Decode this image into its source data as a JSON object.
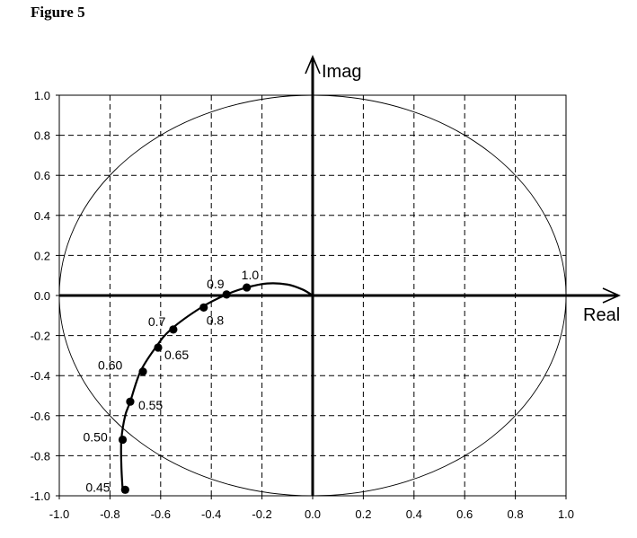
{
  "figure_title": "Figure 5",
  "chart_data": {
    "type": "scatter",
    "xlabel": "Real",
    "ylabel": "Imag",
    "xlim": [
      -1.0,
      1.0
    ],
    "ylim": [
      -1.0,
      1.0
    ],
    "x_ticks": [
      "-1.0",
      "-0.8",
      "-0.6",
      "-0.4",
      "-0.2",
      "0.0",
      "0.2",
      "0.4",
      "0.6",
      "0.8",
      "1.0"
    ],
    "y_ticks": [
      "1.0",
      "0.8",
      "0.6",
      "0.4",
      "0.2",
      "0.0",
      "-0.2",
      "-0.4",
      "-0.6",
      "-0.8",
      "-1.0"
    ],
    "grid": true,
    "unit_circle": {
      "center": [
        0,
        0
      ],
      "radius": 1.0
    },
    "locus_curve": [
      [
        -0.75,
        -0.97
      ],
      [
        -0.755,
        -0.85
      ],
      [
        -0.755,
        -0.72
      ],
      [
        -0.74,
        -0.6
      ],
      [
        -0.72,
        -0.53
      ],
      [
        -0.68,
        -0.38
      ],
      [
        -0.62,
        -0.26
      ],
      [
        -0.56,
        -0.17
      ],
      [
        -0.44,
        -0.06
      ],
      [
        -0.34,
        0.005
      ],
      [
        -0.26,
        0.04
      ],
      [
        -0.18,
        0.06
      ],
      [
        -0.1,
        0.055
      ],
      [
        -0.04,
        0.03
      ],
      [
        0.0,
        0.0
      ]
    ],
    "points": [
      {
        "label": "0.45",
        "x": -0.74,
        "y": -0.97
      },
      {
        "label": "0.50",
        "x": -0.75,
        "y": -0.72
      },
      {
        "label": "0.55",
        "x": -0.72,
        "y": -0.53
      },
      {
        "label": "0.60",
        "x": -0.67,
        "y": -0.38
      },
      {
        "label": "0.65",
        "x": -0.61,
        "y": -0.26
      },
      {
        "label": "0.7",
        "x": -0.55,
        "y": -0.17
      },
      {
        "label": "0.8",
        "x": -0.43,
        "y": -0.06
      },
      {
        "label": "0.9",
        "x": -0.34,
        "y": 0.005
      },
      {
        "label": "1.0",
        "x": -0.26,
        "y": 0.04
      }
    ]
  }
}
